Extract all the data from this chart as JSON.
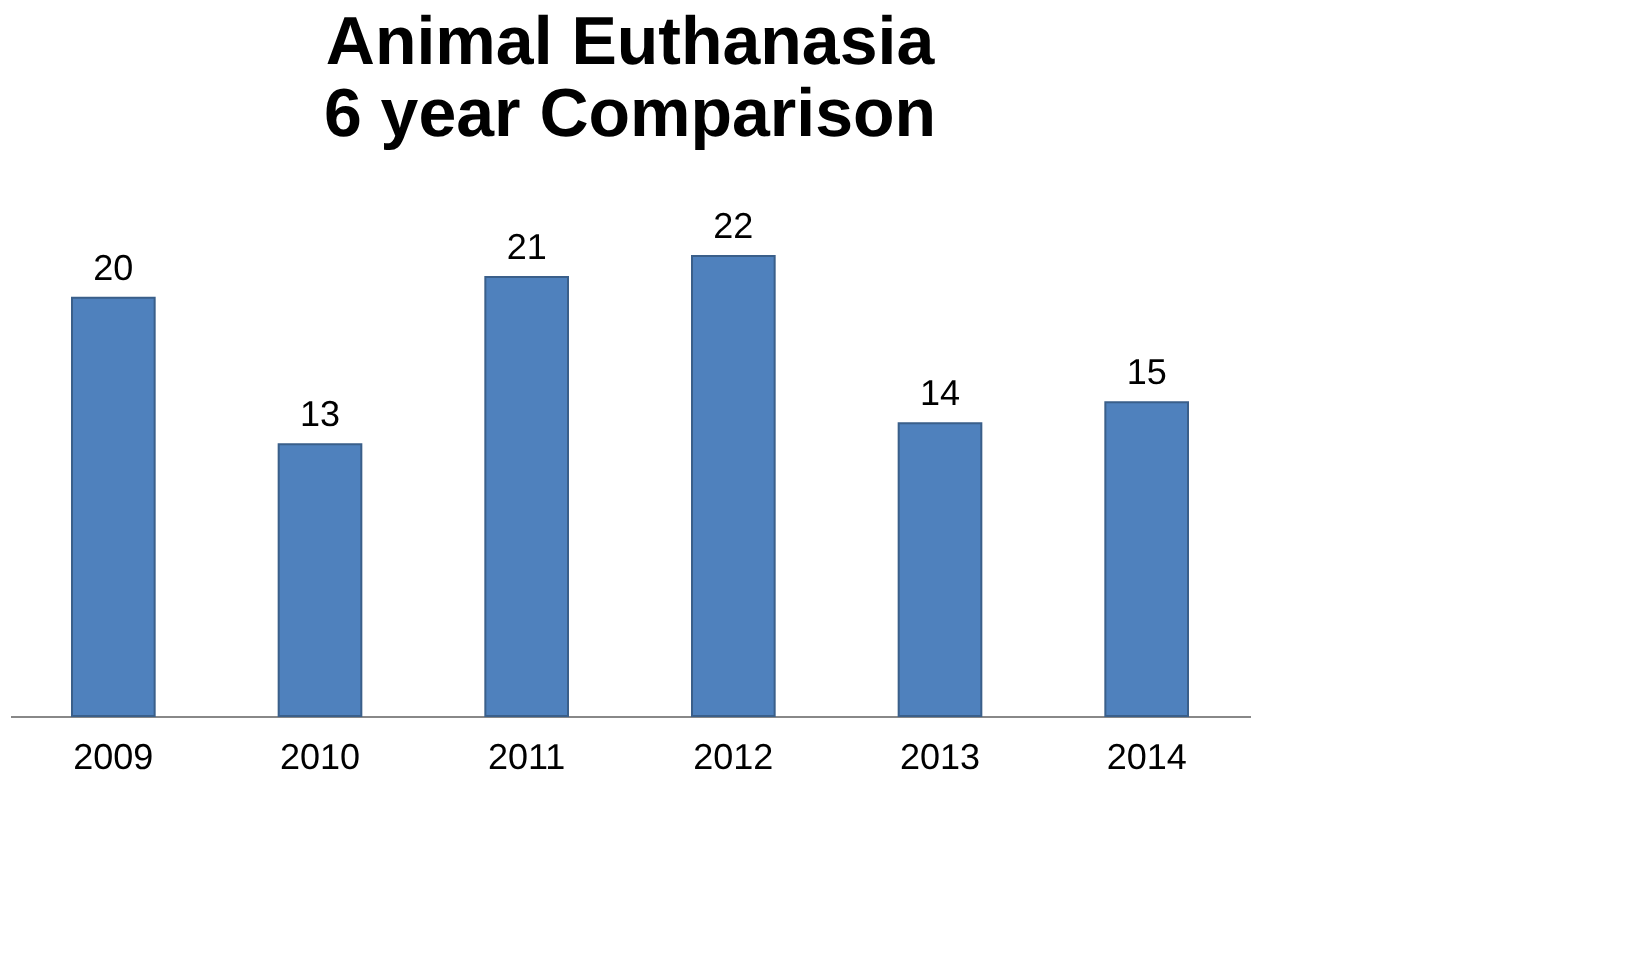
{
  "chart_data": {
    "type": "bar",
    "title": "Animal Euthanasia\n6 year Comparison",
    "categories": [
      "2009",
      "2010",
      "2011",
      "2012",
      "2013",
      "2014"
    ],
    "values": [
      20,
      13,
      21,
      22,
      14,
      15
    ],
    "color": "#4f81bd",
    "data_labels": true
  }
}
